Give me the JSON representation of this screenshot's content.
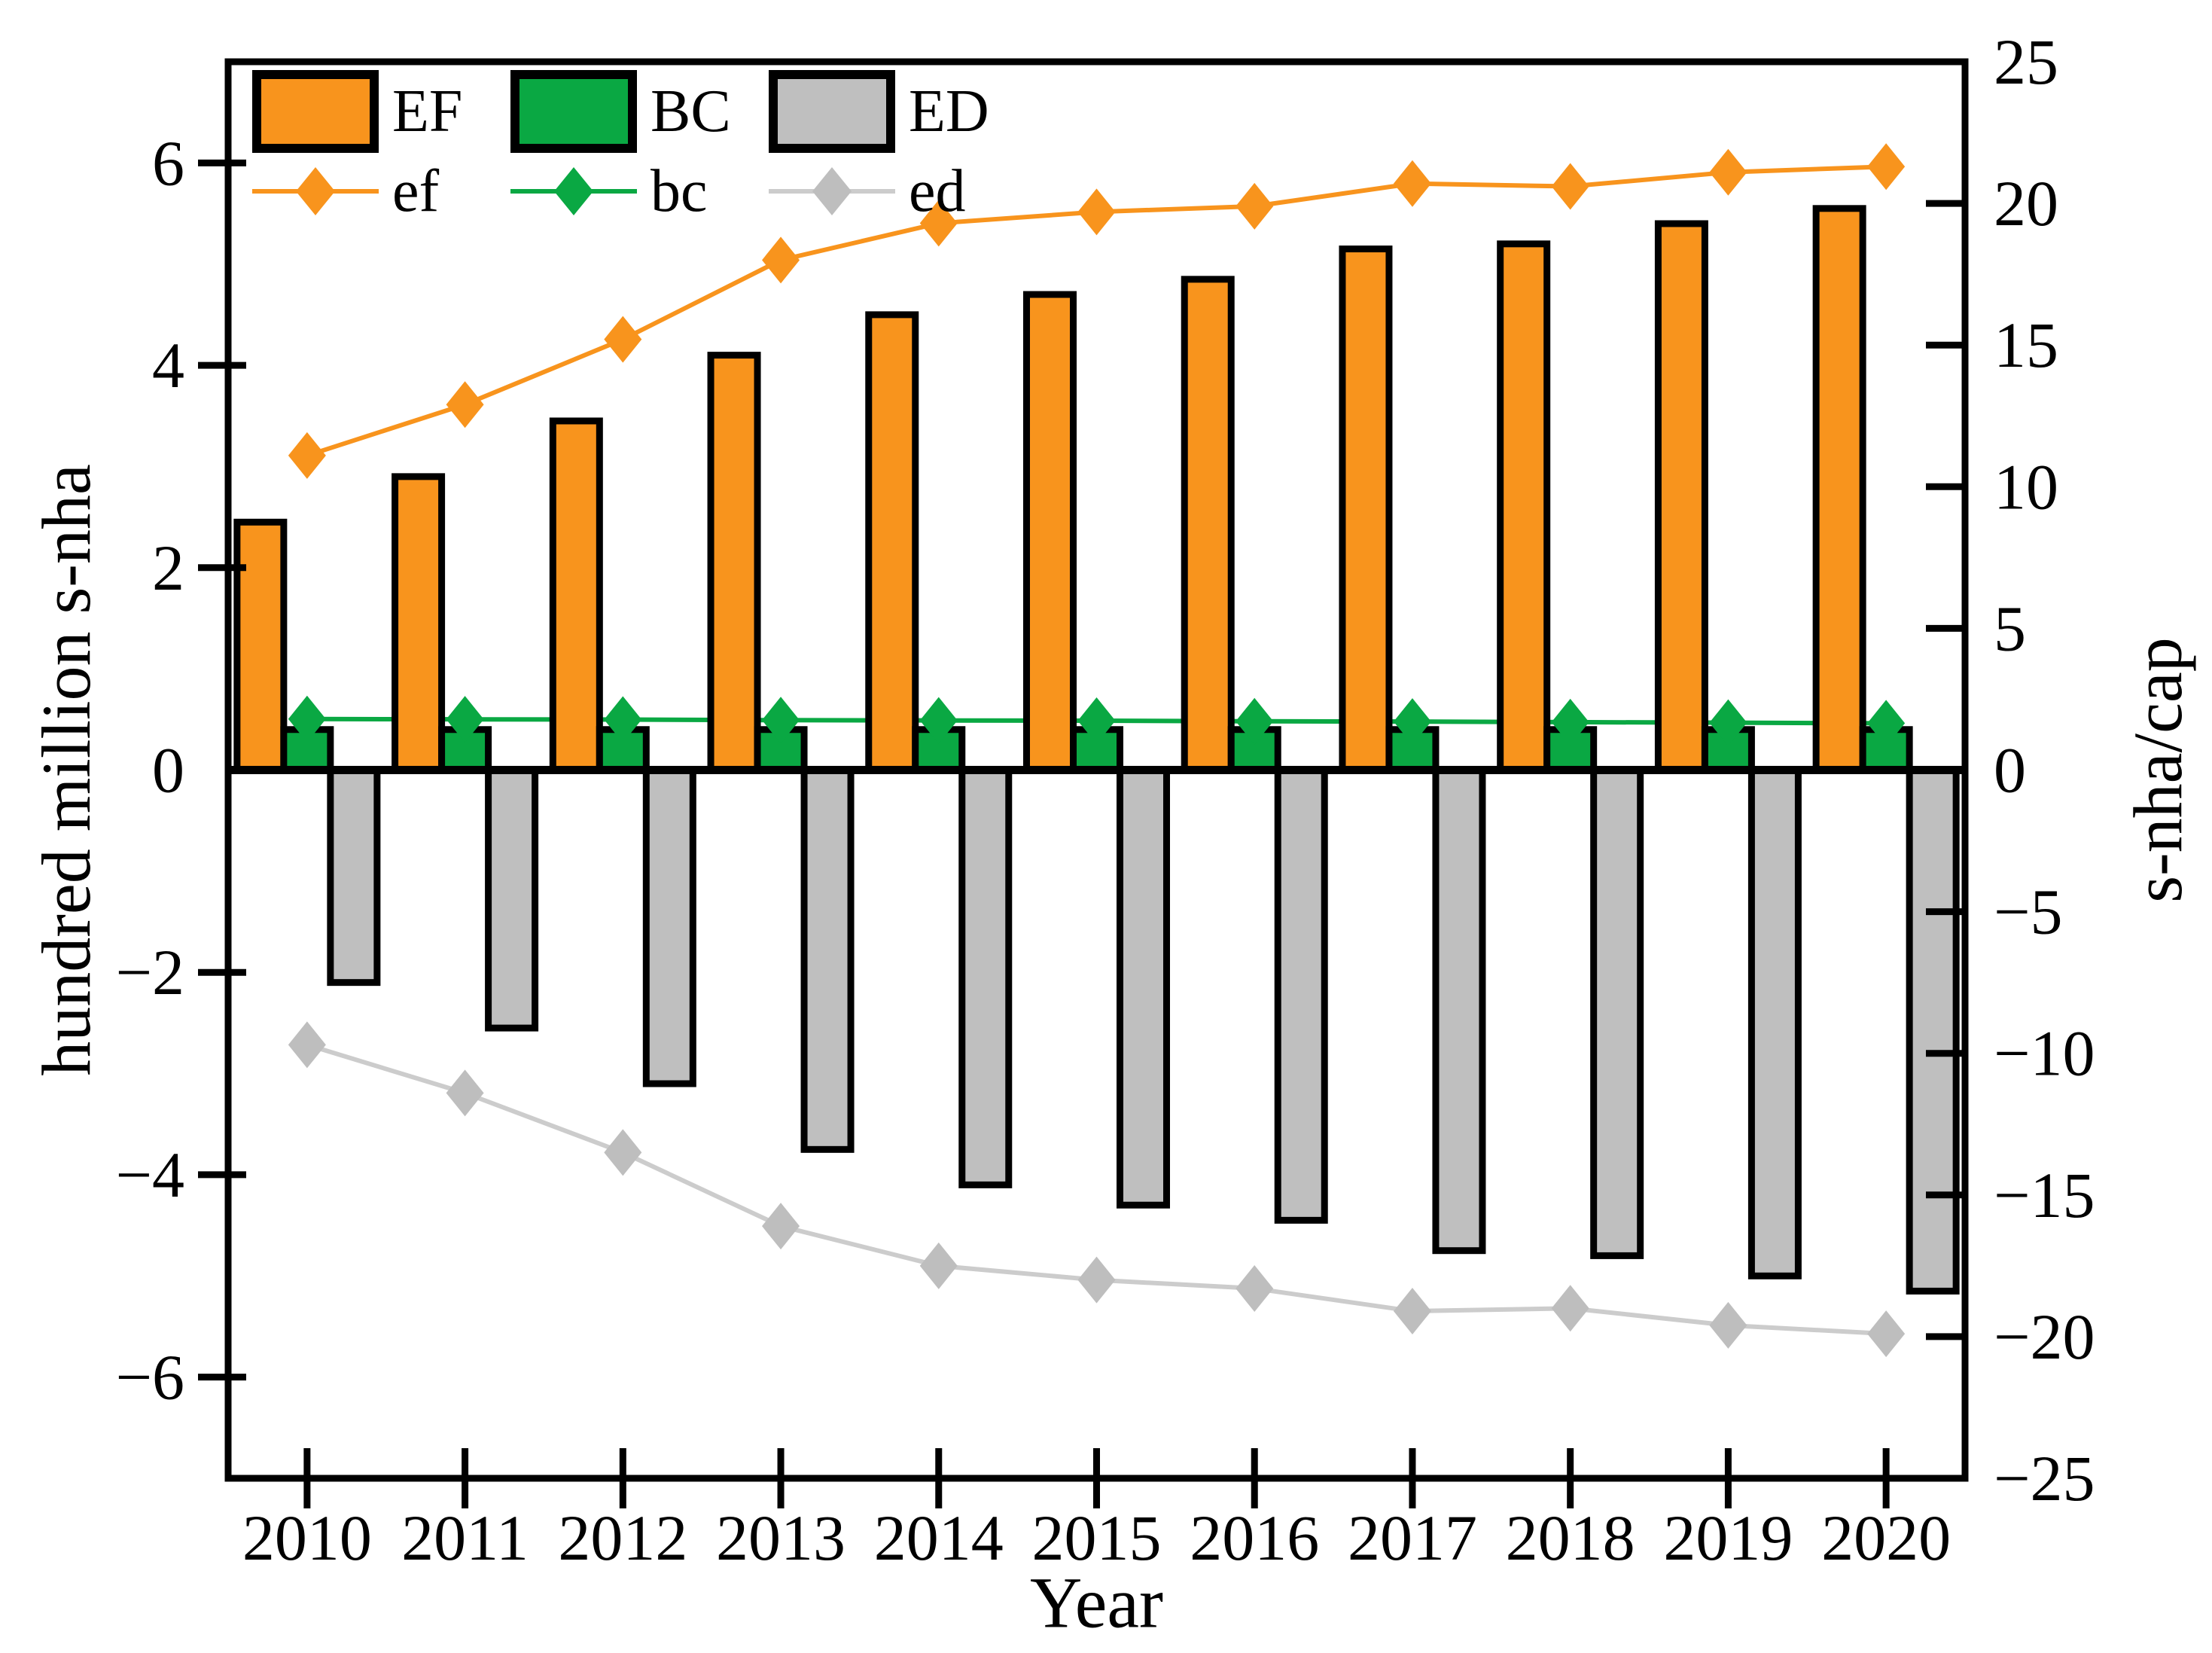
{
  "figure_type": "dual-axis bar and line chart",
  "legend": {
    "bar_items": [
      {
        "label": "EF",
        "color": "#F8941D"
      },
      {
        "label": "BC",
        "color": "#0AA843"
      },
      {
        "label": "ED",
        "color": "#BFBFBF"
      }
    ],
    "line_items": [
      {
        "label": "ef",
        "color": "#F8941D"
      },
      {
        "label": "bc",
        "color": "#0AA843"
      },
      {
        "label": "ed",
        "color": "#BEBEBE"
      }
    ]
  },
  "chart_data": {
    "type": "bar",
    "title": "",
    "categories": [
      "2010",
      "2011",
      "2012",
      "2013",
      "2014",
      "2015",
      "2016",
      "2017",
      "2018",
      "2019",
      "2020"
    ],
    "xlabel": "Year",
    "left_axis": {
      "label": "hundred million s-nha",
      "range": [
        -7,
        7
      ],
      "ticks": [
        -6,
        -4,
        -2,
        0,
        2,
        4,
        6
      ]
    },
    "right_axis": {
      "label": "s-nha/cap",
      "range": [
        -25,
        25
      ],
      "ticks": [
        -25,
        -20,
        -15,
        -10,
        -5,
        0,
        5,
        10,
        15,
        20,
        25
      ]
    },
    "grid": "off",
    "legend_position": "top-left inside plot",
    "series": [
      {
        "name": "EF",
        "type": "bar",
        "axis": "left",
        "color": "#F8941D",
        "edge": "#000000",
        "values": [
          2.45,
          2.9,
          3.45,
          4.1,
          4.5,
          4.7,
          4.85,
          5.15,
          5.2,
          5.4,
          5.55
        ]
      },
      {
        "name": "BC",
        "type": "bar",
        "axis": "left",
        "color": "#0AA843",
        "edge": "#000000",
        "values": [
          0.4,
          0.4,
          0.4,
          0.4,
          0.4,
          0.4,
          0.4,
          0.4,
          0.4,
          0.4,
          0.4
        ]
      },
      {
        "name": "ED",
        "type": "bar",
        "axis": "left",
        "color": "#BFBFBF",
        "edge": "#000000",
        "values": [
          -2.1,
          -2.55,
          -3.1,
          -3.75,
          -4.1,
          -4.3,
          -4.45,
          -4.75,
          -4.8,
          -5.0,
          -5.15
        ]
      },
      {
        "name": "ef",
        "type": "line",
        "axis": "right",
        "color": "#F8941D",
        "marker": "diamond",
        "values": [
          11.1,
          12.9,
          15.2,
          18.0,
          19.3,
          19.7,
          19.9,
          20.7,
          20.6,
          21.1,
          21.3
        ]
      },
      {
        "name": "bc",
        "type": "line",
        "axis": "right",
        "color": "#0AA843",
        "marker": "diamond",
        "values": [
          1.8,
          1.79,
          1.78,
          1.76,
          1.75,
          1.74,
          1.72,
          1.71,
          1.69,
          1.67,
          1.65
        ]
      },
      {
        "name": "ed",
        "type": "line",
        "axis": "right",
        "color": "#BEBEBE",
        "line_color": "#CCCCCC",
        "marker": "diamond",
        "values": [
          -9.7,
          -11.4,
          -13.5,
          -16.1,
          -17.5,
          -18.0,
          -18.3,
          -19.1,
          -19.0,
          -19.6,
          -19.9
        ]
      }
    ]
  }
}
